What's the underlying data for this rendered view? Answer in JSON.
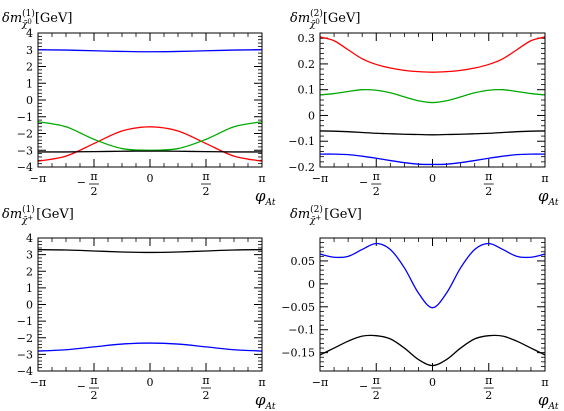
{
  "chart_data": [
    {
      "type": "line",
      "ylabel": "δm(1) χ̃0 [GeV]",
      "ylabel_parts": {
        "base": "δm",
        "sup": "(1)",
        "sub": "χ̃",
        "subsup": "0",
        "unit": "[GeV]"
      },
      "xlabel": "φAt",
      "xlabel_parts": {
        "base": "φ",
        "sub": "At"
      },
      "xlim": [
        -3.14159,
        3.14159
      ],
      "ylim": [
        -4,
        4
      ],
      "yticks": [
        {
          "v": -4,
          "label": "−4"
        },
        {
          "v": -3,
          "label": "−3"
        },
        {
          "v": -2,
          "label": "−2"
        },
        {
          "v": -1,
          "label": "−1"
        },
        {
          "v": 0,
          "label": "0"
        },
        {
          "v": 1,
          "label": "1"
        },
        {
          "v": 2,
          "label": "2"
        },
        {
          "v": 3,
          "label": "3"
        },
        {
          "v": 4,
          "label": "4"
        }
      ],
      "x": [
        -3.1416,
        -2.3562,
        -1.5708,
        -0.7854,
        0,
        0.7854,
        1.5708,
        2.3562,
        3.1416
      ],
      "series": [
        {
          "color": "#0000ff",
          "values": [
            3.0,
            2.98,
            2.94,
            2.9,
            2.88,
            2.9,
            2.94,
            2.98,
            3.0
          ]
        },
        {
          "color": "#ff0000",
          "values": [
            -3.65,
            -3.35,
            -2.6,
            -1.85,
            -1.6,
            -1.85,
            -2.6,
            -3.35,
            -3.65
          ]
        },
        {
          "color": "#00aa00",
          "values": [
            -1.3,
            -1.6,
            -2.35,
            -2.9,
            -3.0,
            -2.9,
            -2.35,
            -1.6,
            -1.3
          ]
        },
        {
          "color": "#000000",
          "values": [
            -3.1,
            -3.1,
            -3.08,
            -3.06,
            -3.05,
            -3.06,
            -3.08,
            -3.1,
            -3.1
          ]
        }
      ]
    },
    {
      "type": "line",
      "ylabel": "δm(2) χ̃0 [GeV]",
      "ylabel_parts": {
        "base": "δm",
        "sup": "(2)",
        "sub": "χ̃",
        "subsup": "0",
        "unit": "[GeV]"
      },
      "xlabel": "φAt",
      "xlabel_parts": {
        "base": "φ",
        "sub": "At"
      },
      "xlim": [
        -3.14159,
        3.14159
      ],
      "ylim": [
        -0.2,
        0.32
      ],
      "yticks": [
        {
          "v": -0.2,
          "label": "−0.2"
        },
        {
          "v": -0.1,
          "label": "−0.1"
        },
        {
          "v": 0,
          "label": "0"
        },
        {
          "v": 0.1,
          "label": "0.1"
        },
        {
          "v": 0.2,
          "label": "0.2"
        },
        {
          "v": 0.3,
          "label": "0.3"
        }
      ],
      "x": [
        -3.1416,
        -2.7489,
        -2.3562,
        -1.9635,
        -1.5708,
        -1.1781,
        -0.7854,
        -0.3927,
        0,
        0.3927,
        0.7854,
        1.1781,
        1.5708,
        1.9635,
        2.3562,
        2.7489,
        3.1416
      ],
      "series": [
        {
          "color": "#ff0000",
          "values": [
            0.305,
            0.29,
            0.255,
            0.22,
            0.198,
            0.184,
            0.175,
            0.17,
            0.168,
            0.17,
            0.175,
            0.184,
            0.198,
            0.22,
            0.255,
            0.29,
            0.305
          ]
        },
        {
          "color": "#00aa00",
          "values": [
            0.08,
            0.085,
            0.093,
            0.1,
            0.098,
            0.088,
            0.072,
            0.057,
            0.05,
            0.057,
            0.072,
            0.088,
            0.098,
            0.1,
            0.093,
            0.085,
            0.08
          ]
        },
        {
          "color": "#000000",
          "values": [
            -0.06,
            -0.061,
            -0.063,
            -0.066,
            -0.069,
            -0.071,
            -0.073,
            -0.074,
            -0.075,
            -0.074,
            -0.073,
            -0.071,
            -0.069,
            -0.066,
            -0.063,
            -0.061,
            -0.06
          ]
        },
        {
          "color": "#0000ff",
          "values": [
            -0.15,
            -0.15,
            -0.152,
            -0.158,
            -0.166,
            -0.175,
            -0.183,
            -0.189,
            -0.19,
            -0.189,
            -0.183,
            -0.175,
            -0.166,
            -0.158,
            -0.152,
            -0.15,
            -0.15
          ]
        }
      ]
    },
    {
      "type": "line",
      "ylabel": "δm(1) χ̃+ [GeV]",
      "ylabel_parts": {
        "base": "δm",
        "sup": "(1)",
        "sub": "χ̃",
        "subsup": "+",
        "unit": "[GeV]"
      },
      "xlabel": "φAt",
      "xlabel_parts": {
        "base": "φ",
        "sub": "At"
      },
      "xlim": [
        -3.14159,
        3.14159
      ],
      "ylim": [
        -4,
        4
      ],
      "yticks": [
        {
          "v": -4,
          "label": "−4"
        },
        {
          "v": -3,
          "label": "−3"
        },
        {
          "v": -2,
          "label": "−2"
        },
        {
          "v": -1,
          "label": "−1"
        },
        {
          "v": 0,
          "label": "0"
        },
        {
          "v": 1,
          "label": "1"
        },
        {
          "v": 2,
          "label": "2"
        },
        {
          "v": 3,
          "label": "3"
        },
        {
          "v": 4,
          "label": "4"
        }
      ],
      "x": [
        -3.1416,
        -2.3562,
        -1.5708,
        -0.7854,
        0,
        0.7854,
        1.5708,
        2.3562,
        3.1416
      ],
      "series": [
        {
          "color": "#000000",
          "values": [
            3.3,
            3.28,
            3.22,
            3.16,
            3.13,
            3.16,
            3.22,
            3.28,
            3.3
          ]
        },
        {
          "color": "#0000ff",
          "values": [
            -2.8,
            -2.72,
            -2.55,
            -2.38,
            -2.32,
            -2.38,
            -2.55,
            -2.72,
            -2.8
          ]
        }
      ]
    },
    {
      "type": "line",
      "ylabel": "δm(2) χ̃+ [GeV]",
      "ylabel_parts": {
        "base": "δm",
        "sup": "(2)",
        "sub": "χ̃",
        "subsup": "+",
        "unit": "[GeV]"
      },
      "xlabel": "φAt",
      "xlabel_parts": {
        "base": "φ",
        "sub": "At"
      },
      "xlim": [
        -3.14159,
        3.14159
      ],
      "ylim": [
        -0.19,
        0.1
      ],
      "yticks": [
        {
          "v": -0.15,
          "label": "−0.15"
        },
        {
          "v": -0.1,
          "label": "−0.1"
        },
        {
          "v": -0.05,
          "label": "−0.05"
        },
        {
          "v": 0,
          "label": "0"
        },
        {
          "v": 0.05,
          "label": "0.05"
        }
      ],
      "x": [
        -3.1416,
        -2.7489,
        -2.3562,
        -1.9635,
        -1.5708,
        -1.1781,
        -0.7854,
        -0.3927,
        0,
        0.3927,
        0.7854,
        1.1781,
        1.5708,
        1.9635,
        2.3562,
        2.7489,
        3.1416
      ],
      "series": [
        {
          "color": "#0000ff",
          "values": [
            0.065,
            0.058,
            0.06,
            0.075,
            0.088,
            0.075,
            0.035,
            -0.02,
            -0.052,
            -0.02,
            0.035,
            0.075,
            0.088,
            0.075,
            0.06,
            0.058,
            0.065
          ]
        },
        {
          "color": "#000000",
          "values": [
            -0.155,
            -0.14,
            -0.125,
            -0.114,
            -0.113,
            -0.12,
            -0.14,
            -0.165,
            -0.178,
            -0.165,
            -0.14,
            -0.12,
            -0.113,
            -0.114,
            -0.125,
            -0.14,
            -0.155
          ]
        }
      ]
    }
  ],
  "x_tick_labels": {
    "neg_pi": "−π",
    "neg_half": "π",
    "den": "2",
    "zero": "0",
    "half": "π",
    "pi": "π",
    "minus": "−"
  }
}
